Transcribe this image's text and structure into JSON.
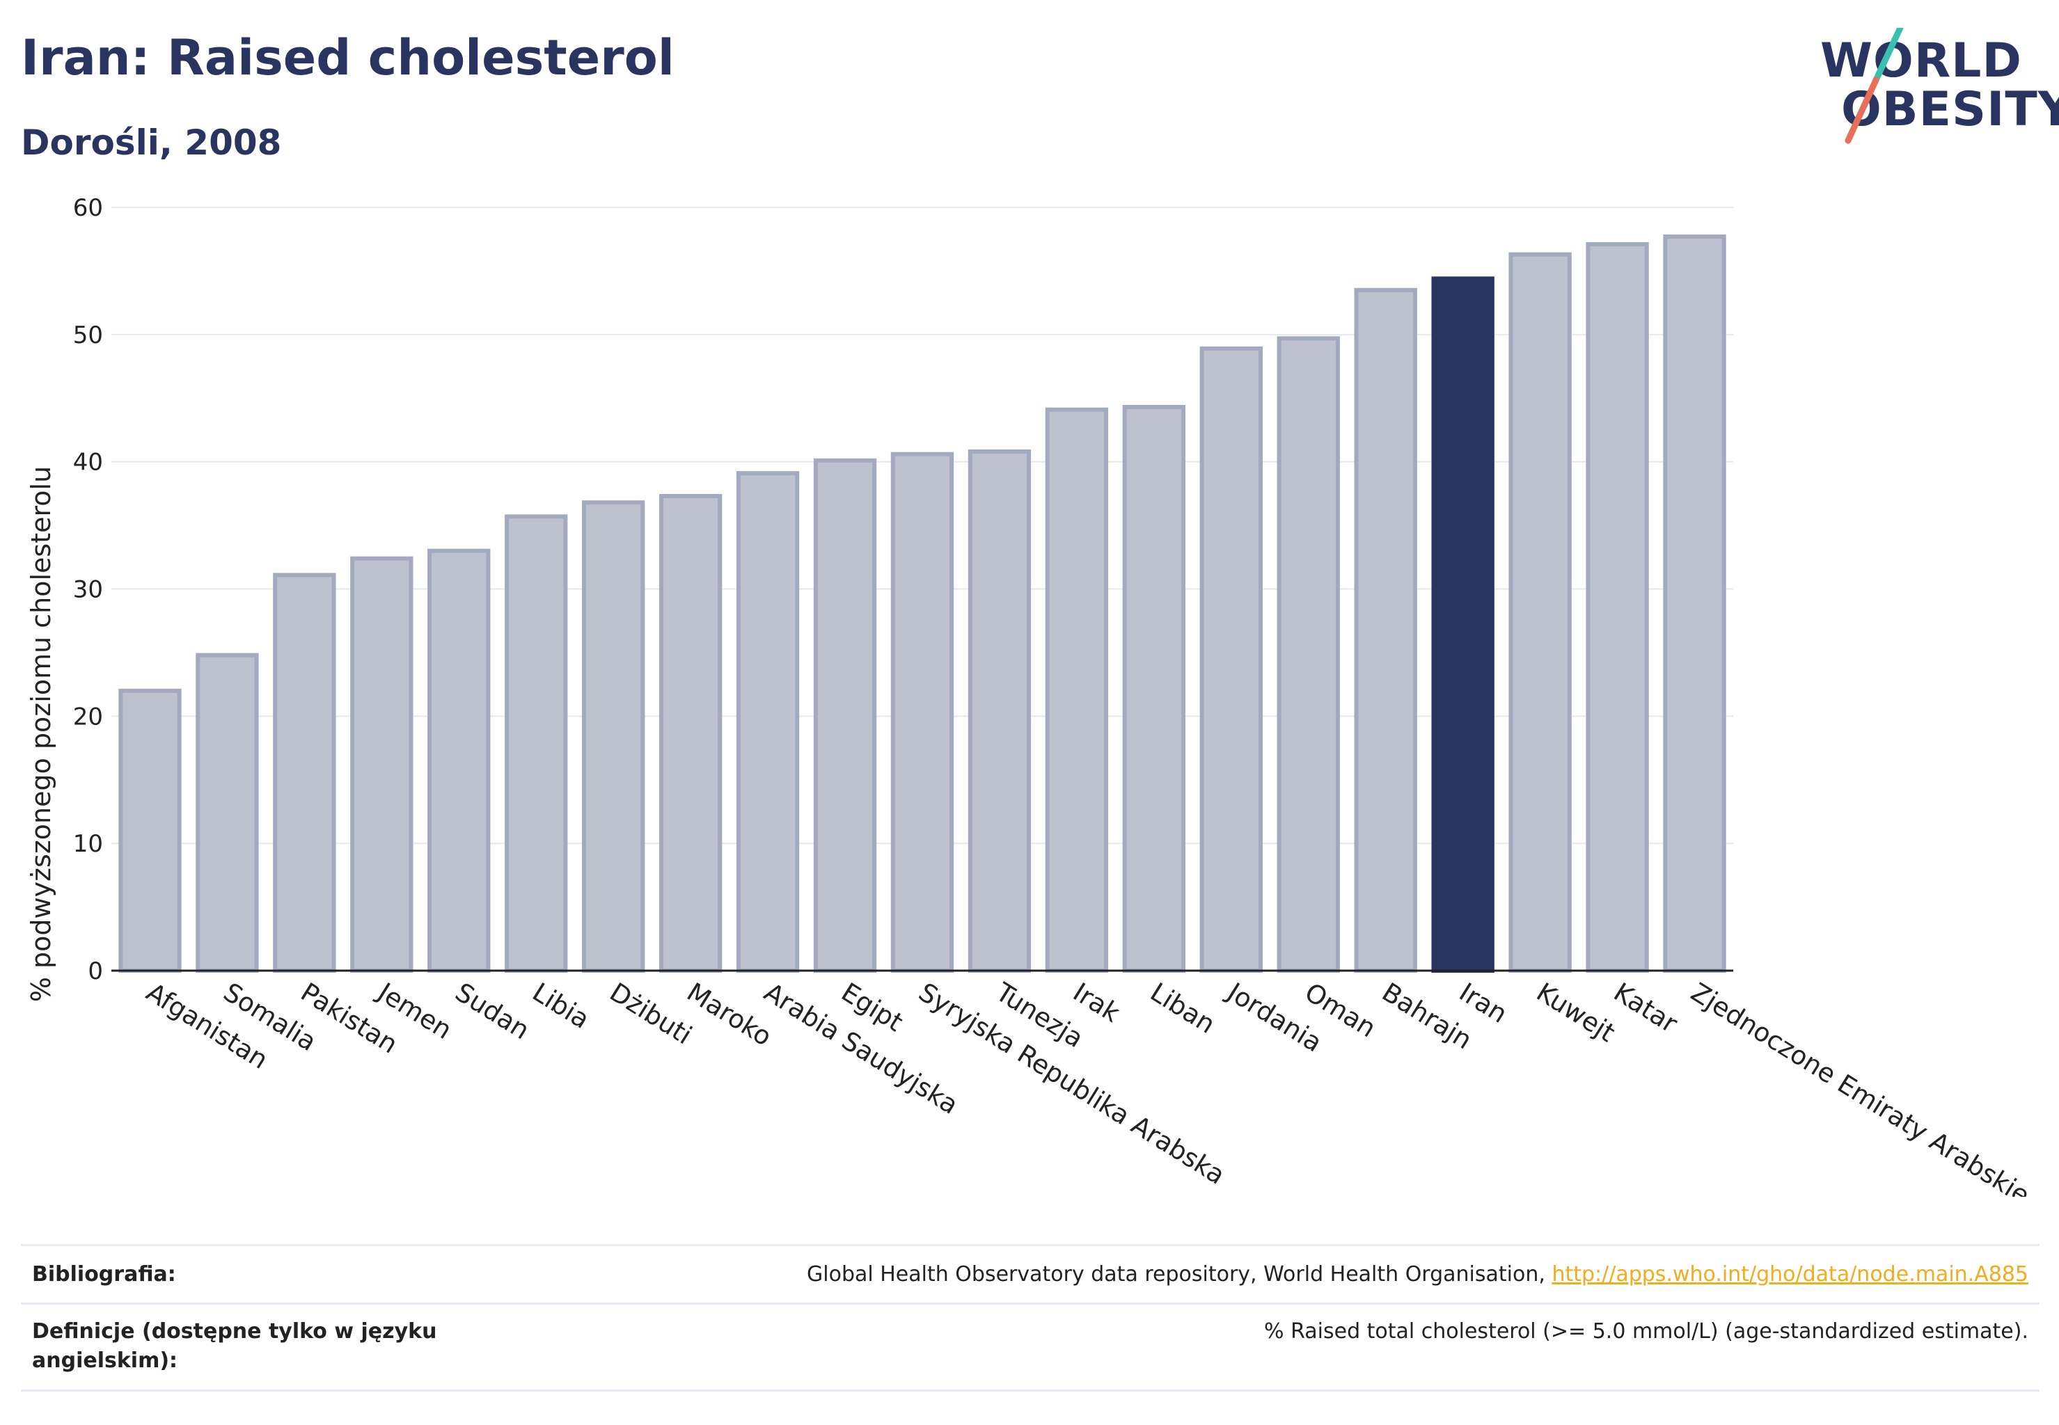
{
  "header": {
    "title": "Iran: Raised cholesterol",
    "subtitle": "Dorośli, 2008"
  },
  "logo": {
    "line1": "WORLD",
    "line2": "OBESITY",
    "accent_colors": [
      "#3bbfb1",
      "#e8705a"
    ]
  },
  "colors": {
    "bar_default": "#bec2cf",
    "bar_default_edge": "#a3a9bf",
    "bar_highlight": "#2a3460",
    "grid": "#e6e8ee",
    "link": "#f0ad1e"
  },
  "chart_data": {
    "type": "bar",
    "title": "Iran: Raised cholesterol",
    "subtitle": "Dorośli, 2008",
    "xlabel": "",
    "ylabel": "% podwyższonego poziomu cholesterolu",
    "ylim": [
      0,
      60
    ],
    "yticks": [
      0,
      10,
      20,
      30,
      40,
      50,
      60
    ],
    "grid": true,
    "highlight": "Iran",
    "categories": [
      "Afganistan",
      "Somalia",
      "Pakistan",
      "Jemen",
      "Sudan",
      "Libia",
      "Dżibuti",
      "Maroko",
      "Arabia Saudyjska",
      "Egipt",
      "Syryjska Republika Arabska",
      "Tunezja",
      "Irak",
      "Liban",
      "Jordania",
      "Oman",
      "Bahrajn",
      "Iran",
      "Kuwejt",
      "Katar",
      "Zjednoczone Emiraty Arabskie"
    ],
    "values": [
      22.0,
      24.8,
      31.1,
      32.4,
      33.0,
      35.7,
      36.8,
      37.3,
      39.1,
      40.1,
      40.6,
      40.8,
      44.1,
      44.3,
      48.9,
      49.7,
      53.5,
      54.4,
      56.3,
      57.1,
      57.7
    ]
  },
  "footer": {
    "bibliography_label": "Bibliografia:",
    "bibliography_text": "Global Health Observatory data repository, World Health Organisation, ",
    "bibliography_link": "http://apps.who.int/gho/data/node.main.A885",
    "definitions_label_line1": "Definicje (dostępne tylko w języku",
    "definitions_label_line2": "angielskim):",
    "definitions_text": "% Raised total cholesterol (>= 5.0 mmol/L) (age-standardized estimate)."
  }
}
